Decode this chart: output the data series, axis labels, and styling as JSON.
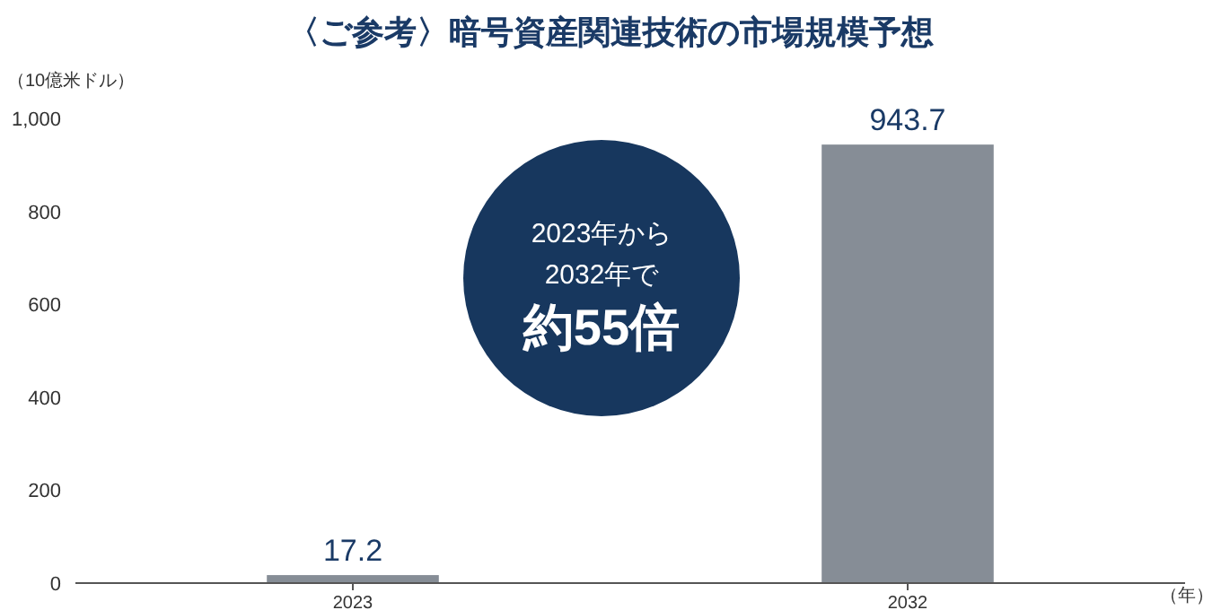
{
  "chart_data": {
    "type": "bar",
    "title": "〈ご参考〉暗号資産関連技術の市場規模予想",
    "ylabel": "（10億米ドル）",
    "xlabel": "（年）",
    "categories": [
      "2023",
      "2032"
    ],
    "values": [
      17.2,
      943.7
    ],
    "color": "#868d96",
    "ylim": [
      0,
      1000
    ],
    "yticks": [
      0,
      200,
      400,
      600,
      800,
      {
        "value": 1000,
        "label": "1,000"
      }
    ],
    "data_labels": true,
    "grid": false,
    "annotations": [
      "2023年から",
      "2032年で",
      "約55倍"
    ]
  }
}
